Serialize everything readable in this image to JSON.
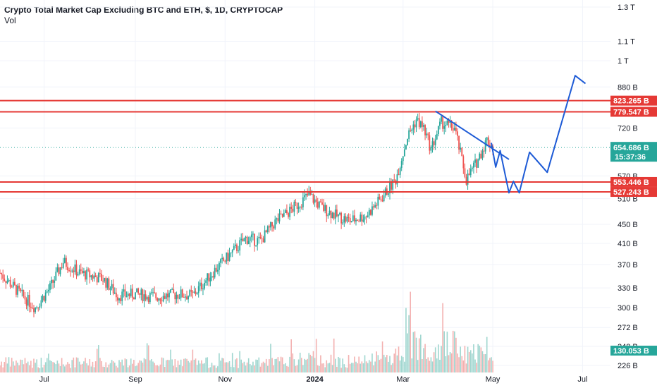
{
  "header": {
    "title": "Crypto Total Market Cap Excluding BTC and ETH, $, 1D, CRYPTOCAP",
    "volume_label": "Vol"
  },
  "colors": {
    "up": "#26a69a",
    "down": "#ef5350",
    "resistance": "#e53935",
    "projection": "#1e5bd6",
    "current_price": "#26a69a",
    "volume_up": "#9fd6cf",
    "volume_down": "#f3b1b0"
  },
  "chart_data": {
    "type": "candlestick",
    "title": "Crypto Total Market Cap Excluding BTC and ETH, $, 1D, CRYPTOCAP",
    "price_scale": "log",
    "y_ticks": [
      "1.3 T",
      "1.1 T",
      "1 T",
      "880 B",
      "720 B",
      "570 B",
      "510 B",
      "450 B",
      "410 B",
      "370 B",
      "330 B",
      "300 B",
      "272 B",
      "248 B",
      "226 B"
    ],
    "y_tick_values": [
      1300,
      1100,
      1000,
      880,
      720,
      570,
      510,
      450,
      410,
      370,
      330,
      300,
      272,
      248,
      226
    ],
    "x_ticks": [
      "Jul",
      "Sep",
      "Nov",
      "2024",
      "Mar",
      "May",
      "Jul"
    ],
    "x_tick_dates": [
      "2023-07-01",
      "2023-09-01",
      "2023-11-01",
      "2024-01-01",
      "2024-03-01",
      "2024-05-01",
      "2024-07-01"
    ],
    "x_range": [
      "2023-06-01",
      "2024-07-20"
    ],
    "price_points": [
      [
        "2023-06-01",
        355
      ],
      [
        "2023-06-15",
        320
      ],
      [
        "2023-06-25",
        300
      ],
      [
        "2023-07-05",
        330
      ],
      [
        "2023-07-14",
        375
      ],
      [
        "2023-07-25",
        355
      ],
      [
        "2023-08-10",
        345
      ],
      [
        "2023-08-20",
        318
      ],
      [
        "2023-09-01",
        320
      ],
      [
        "2023-09-15",
        316
      ],
      [
        "2023-10-01",
        320
      ],
      [
        "2023-10-10",
        318
      ],
      [
        "2023-10-25",
        360
      ],
      [
        "2023-11-05",
        390
      ],
      [
        "2023-11-15",
        420
      ],
      [
        "2023-11-25",
        415
      ],
      [
        "2023-12-05",
        455
      ],
      [
        "2023-12-15",
        480
      ],
      [
        "2023-12-28",
        520
      ],
      [
        "2024-01-05",
        490
      ],
      [
        "2024-01-15",
        470
      ],
      [
        "2024-01-25",
        458
      ],
      [
        "2024-02-05",
        470
      ],
      [
        "2024-02-15",
        510
      ],
      [
        "2024-02-25",
        560
      ],
      [
        "2024-03-04",
        690
      ],
      [
        "2024-03-10",
        750
      ],
      [
        "2024-03-15",
        720
      ],
      [
        "2024-03-20",
        650
      ],
      [
        "2024-03-27",
        740
      ],
      [
        "2024-04-05",
        720
      ],
      [
        "2024-04-13",
        560
      ],
      [
        "2024-04-20",
        610
      ],
      [
        "2024-04-27",
        680
      ],
      [
        "2024-05-01",
        655
      ]
    ],
    "current_price": {
      "value": "654.686 B",
      "countdown": "15:37:36"
    },
    "last_volume": "130.053 B",
    "resistance_lines": [
      {
        "value": 823.265,
        "label": "823.265 B"
      },
      {
        "value": 779.547,
        "label": "779.547 B"
      }
    ],
    "support_lines": [
      {
        "value": 553.446,
        "label": "553.446 B"
      },
      {
        "value": 527.243,
        "label": "527.243 B"
      }
    ],
    "trendline": {
      "from": [
        "2024-03-23",
        782
      ],
      "to": [
        "2024-05-12",
        618
      ]
    },
    "projection_path": [
      [
        "2024-04-30",
        670
      ],
      [
        "2024-05-03",
        595
      ],
      [
        "2024-05-06",
        645
      ],
      [
        "2024-05-12",
        525
      ],
      [
        "2024-05-15",
        555
      ],
      [
        "2024-05-19",
        525
      ],
      [
        "2024-05-26",
        640
      ],
      [
        "2024-06-07",
        580
      ],
      [
        "2024-06-26",
        930
      ],
      [
        "2024-07-03",
        895
      ]
    ]
  }
}
